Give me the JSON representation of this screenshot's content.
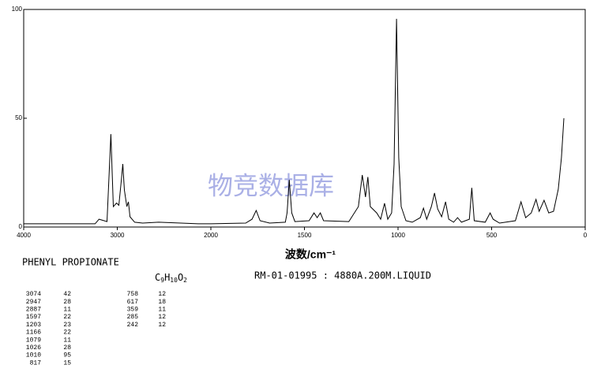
{
  "chart_data": {
    "type": "line",
    "color": "#000000",
    "xlim": [
      4000,
      0
    ],
    "xticks": [
      4000,
      3000,
      2000,
      1500,
      1000,
      500,
      0
    ],
    "ylim": [
      0,
      100
    ],
    "yticks": [
      0,
      50,
      100
    ],
    "xlabel": "波数/cm⁻¹",
    "watermark": "物竞数据库",
    "compound": "PHENYL PROPIONATE",
    "formula": [
      "C",
      "9",
      "H",
      "10",
      "O",
      "2"
    ],
    "sample": "RM-01-01995 : 4880A.200M.LIQUID",
    "peak_table": [
      [
        [
          3074,
          42
        ],
        [
          2947,
          28
        ],
        [
          2887,
          11
        ],
        [
          1597,
          22
        ],
        [
          1203,
          23
        ],
        [
          1166,
          22
        ],
        [
          1079,
          11
        ],
        [
          1026,
          28
        ],
        [
          1010,
          95
        ],
        [
          817,
          15
        ]
      ],
      [
        [
          758,
          12
        ],
        [
          617,
          18
        ],
        [
          359,
          11
        ],
        [
          285,
          12
        ],
        [
          242,
          12
        ]
      ]
    ],
    "x": [
      4000,
      3500,
      3237,
      3195,
      3110,
      3068,
      3042,
      3008,
      2983,
      2958,
      2941,
      2924,
      2898,
      2881,
      2864,
      2814,
      2729,
      2559,
      2136,
      2000,
      1814,
      1780,
      1758,
      1737,
      1686,
      1602,
      1593,
      1581,
      1568,
      1551,
      1475,
      1449,
      1432,
      1415,
      1398,
      1263,
      1212,
      1191,
      1174,
      1161,
      1148,
      1114,
      1093,
      1072,
      1055,
      1034,
      1021,
      1008,
      996,
      983,
      958,
      924,
      881,
      864,
      847,
      822,
      805,
      788,
      767,
      746,
      729,
      703,
      682,
      661,
      619,
      606,
      593,
      534,
      508,
      492,
      458,
      373,
      343,
      318,
      288,
      263,
      246,
      220,
      195,
      169,
      144,
      127,
      114
    ],
    "values": [
      1.5,
      1.5,
      1.5,
      3.6,
      2.5,
      42.7,
      9.4,
      11,
      10,
      21,
      29,
      17,
      9.4,
      11.6,
      4.7,
      2.2,
      1.8,
      2.2,
      1.5,
      1.5,
      1.8,
      3.6,
      7.6,
      2.9,
      1.8,
      2.2,
      6.5,
      21.7,
      6.5,
      2.5,
      2.9,
      6.5,
      4.3,
      6.5,
      2.9,
      2.5,
      9.4,
      23.9,
      13.8,
      23,
      9.4,
      6.5,
      3.6,
      10.9,
      3.6,
      6.5,
      29,
      95.7,
      31.9,
      9.4,
      2.9,
      2.2,
      4.3,
      8.7,
      3.6,
      9.4,
      15.6,
      8.3,
      4.7,
      11.6,
      3.6,
      2.2,
      4.3,
      2.2,
      3.6,
      18,
      2.9,
      2.2,
      6.5,
      3.6,
      1.8,
      2.9,
      11.6,
      4.3,
      6.5,
      12.7,
      7.2,
      12.3,
      6.5,
      7.2,
      17.4,
      31.9,
      50
    ]
  }
}
